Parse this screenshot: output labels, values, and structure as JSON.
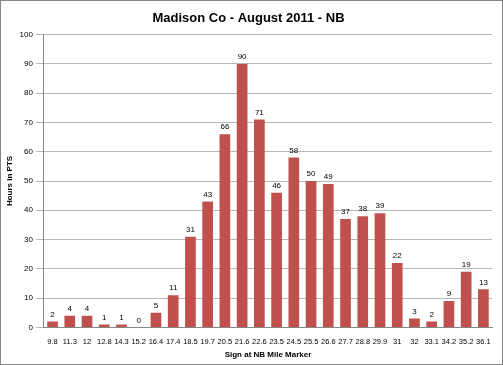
{
  "chart_data": {
    "type": "bar",
    "title": "Madison Co - August 2011 - NB",
    "x_label": "Sign at NB Mile Marker",
    "y_label": "Hours in PTS",
    "categories": [
      "9.8",
      "11.3",
      "12",
      "12.8",
      "14.3",
      "15.2",
      "16.4",
      "17.4",
      "18.5",
      "19.7",
      "20.5",
      "21.6",
      "22.6",
      "23.5",
      "24.5",
      "25.5",
      "26.6",
      "27.7",
      "28.8",
      "29.9",
      "31",
      "32",
      "33.1",
      "34.2",
      "35.2",
      "36.1"
    ],
    "values": [
      2,
      4,
      4,
      1,
      1,
      0,
      5,
      11,
      31,
      43,
      66,
      90,
      71,
      46,
      58,
      50,
      49,
      37,
      38,
      39,
      22,
      3,
      2,
      9,
      19,
      13
    ],
    "color": "#c0504d",
    "ylim": [
      0,
      100
    ],
    "yticks": [
      0,
      10,
      20,
      30,
      40,
      50,
      60,
      70,
      80,
      90,
      100
    ],
    "grid": true,
    "data_labels": true
  }
}
